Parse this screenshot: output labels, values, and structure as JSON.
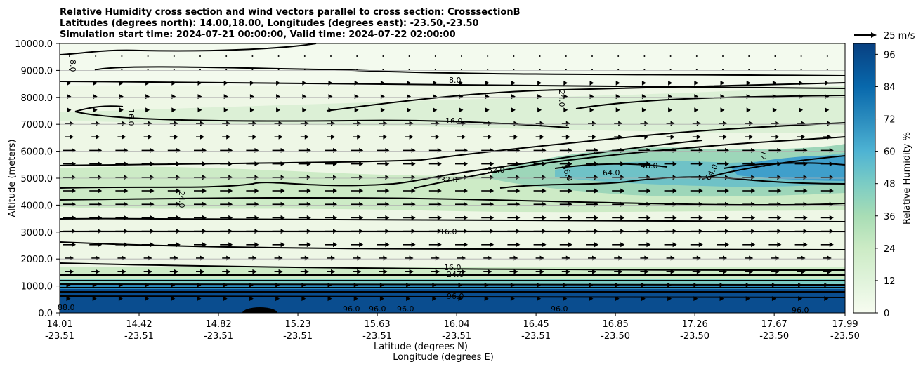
{
  "chart_data": {
    "type": "heatmap",
    "title_lines": [
      "Relative Humidity cross section and wind vectors parallel to cross section: CrosssectionB",
      "Latitudes (degrees north): 14.00,18.00, Longitudes (degrees east): -23.50,-23.50",
      "Simulation start time: 2024-07-21 00:00:00, Valid time: 2024-07-22 02:00:00"
    ],
    "ylabel": "Altitude (meters)",
    "xlabel_lat": "Latitude (degrees N)",
    "xlabel_lon": "Longitude (degrees E)",
    "ylim": [
      0,
      10000
    ],
    "y_ticks": [
      "0.0",
      "1000.0",
      "2000.0",
      "3000.0",
      "4000.0",
      "5000.0",
      "6000.0",
      "7000.0",
      "8000.0",
      "9000.0",
      "10000.0"
    ],
    "x_ticks": [
      {
        "lat": "14.01",
        "lon": "-23.51"
      },
      {
        "lat": "14.42",
        "lon": "-23.51"
      },
      {
        "lat": "14.82",
        "lon": "-23.51"
      },
      {
        "lat": "15.23",
        "lon": "-23.51"
      },
      {
        "lat": "15.63",
        "lon": "-23.51"
      },
      {
        "lat": "16.04",
        "lon": "-23.51"
      },
      {
        "lat": "16.45",
        "lon": "-23.51"
      },
      {
        "lat": "16.85",
        "lon": "-23.50"
      },
      {
        "lat": "17.26",
        "lon": "-23.50"
      },
      {
        "lat": "17.67",
        "lon": "-23.50"
      },
      {
        "lat": "17.99",
        "lon": "-23.50"
      }
    ],
    "colorbar": {
      "label": "Relative Humidity %",
      "ticks": [
        "0",
        "12",
        "24",
        "36",
        "48",
        "60",
        "72",
        "84",
        "96"
      ],
      "range": [
        0,
        100
      ],
      "levels": 25
    },
    "wind_key": {
      "label": "25 m/s"
    },
    "contour_labels": [
      "8.0",
      "16.0",
      "24.0",
      "32.0",
      "48.0",
      "56.0",
      "64.0",
      "72.0",
      "88.0",
      "96.0"
    ],
    "grid": "horizontal",
    "colormap": "GnBu",
    "colors": {
      "low": "#f7fcf0",
      "mid": "#a8ddb5",
      "high": "#084081"
    }
  }
}
